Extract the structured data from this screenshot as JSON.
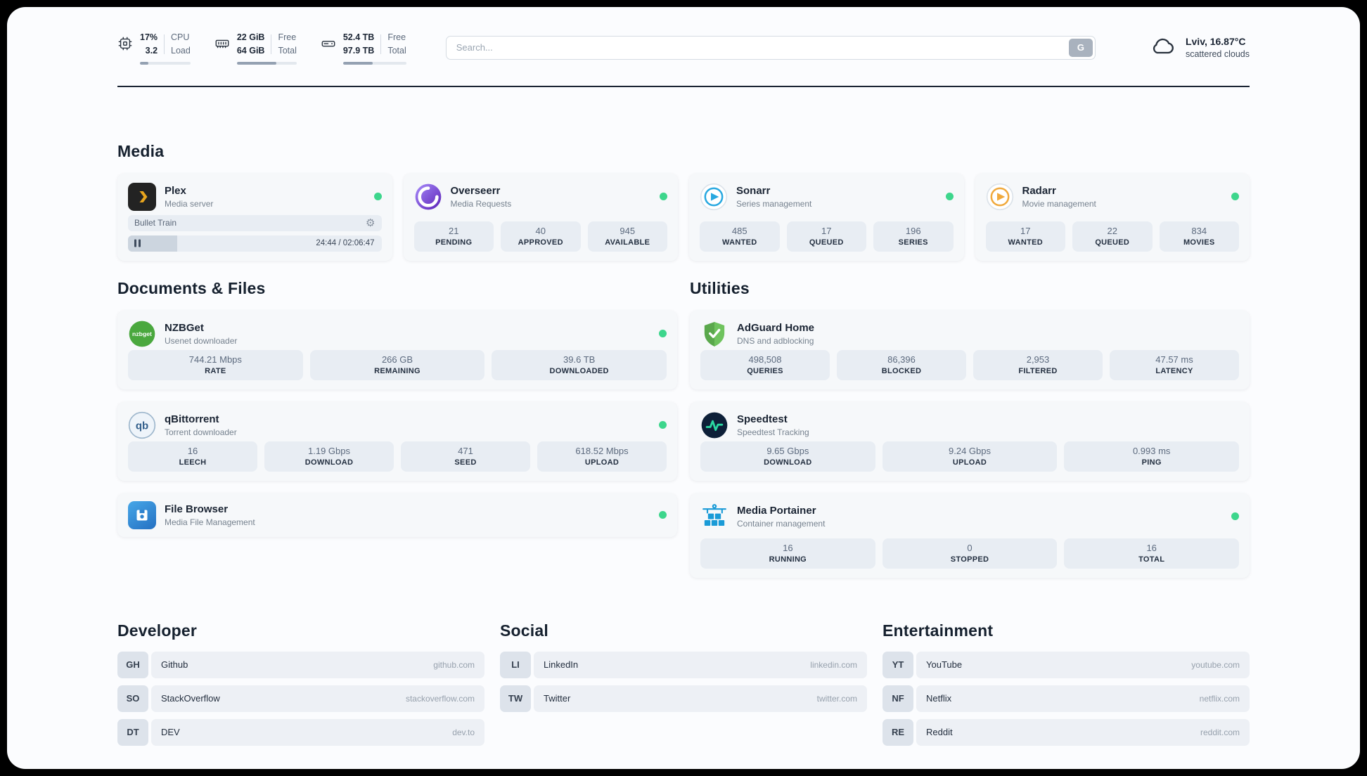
{
  "topbar": {
    "cpu": {
      "values": [
        "17%",
        "3.2"
      ],
      "labels": [
        "CPU",
        "Load"
      ],
      "usage_pct": 17
    },
    "ram": {
      "values": [
        "22 GiB",
        "64 GiB"
      ],
      "labels": [
        "Free",
        "Total"
      ],
      "usage_pct": 66
    },
    "disk": {
      "values": [
        "52.4 TB",
        "97.9 TB"
      ],
      "labels": [
        "Free",
        "Total"
      ],
      "usage_pct": 47
    },
    "search": {
      "placeholder": "Search...",
      "button_label": "G"
    },
    "weather": {
      "location": "Lviv, 16.87°C",
      "condition": "scattered clouds"
    }
  },
  "media": {
    "title": "Media",
    "plex": {
      "name": "Plex",
      "subtitle": "Media server",
      "now_playing": "Bullet Train",
      "time": "24:44 / 02:06:47",
      "progress_pct": 19.5
    },
    "overseerr": {
      "name": "Overseerr",
      "subtitle": "Media Requests",
      "stats": [
        {
          "value": "21",
          "label": "PENDING"
        },
        {
          "value": "40",
          "label": "APPROVED"
        },
        {
          "value": "945",
          "label": "AVAILABLE"
        }
      ]
    },
    "sonarr": {
      "name": "Sonarr",
      "subtitle": "Series management",
      "stats": [
        {
          "value": "485",
          "label": "WANTED"
        },
        {
          "value": "17",
          "label": "QUEUED"
        },
        {
          "value": "196",
          "label": "SERIES"
        }
      ]
    },
    "radarr": {
      "name": "Radarr",
      "subtitle": "Movie management",
      "stats": [
        {
          "value": "17",
          "label": "WANTED"
        },
        {
          "value": "22",
          "label": "QUEUED"
        },
        {
          "value": "834",
          "label": "MOVIES"
        }
      ]
    }
  },
  "documents": {
    "title": "Documents & Files",
    "nzbget": {
      "name": "NZBGet",
      "subtitle": "Usenet downloader",
      "stats": [
        {
          "value": "744.21 Mbps",
          "label": "RATE"
        },
        {
          "value": "266 GB",
          "label": "REMAINING"
        },
        {
          "value": "39.6 TB",
          "label": "DOWNLOADED"
        }
      ]
    },
    "qbittorrent": {
      "name": "qBittorrent",
      "subtitle": "Torrent downloader",
      "stats": [
        {
          "value": "16",
          "label": "LEECH"
        },
        {
          "value": "1.19 Gbps",
          "label": "DOWNLOAD"
        },
        {
          "value": "471",
          "label": "SEED"
        },
        {
          "value": "618.52 Mbps",
          "label": "UPLOAD"
        }
      ]
    },
    "filebrowser": {
      "name": "File Browser",
      "subtitle": "Media File Management"
    }
  },
  "utilities": {
    "title": "Utilities",
    "adguard": {
      "name": "AdGuard Home",
      "subtitle": "DNS and adblocking",
      "stats": [
        {
          "value": "498,508",
          "label": "QUERIES"
        },
        {
          "value": "86,396",
          "label": "BLOCKED"
        },
        {
          "value": "2,953",
          "label": "FILTERED"
        },
        {
          "value": "47.57 ms",
          "label": "LATENCY"
        }
      ]
    },
    "speedtest": {
      "name": "Speedtest",
      "subtitle": "Speedtest Tracking",
      "stats": [
        {
          "value": "9.65 Gbps",
          "label": "DOWNLOAD"
        },
        {
          "value": "9.24 Gbps",
          "label": "UPLOAD"
        },
        {
          "value": "0.993 ms",
          "label": "PING"
        }
      ]
    },
    "portainer": {
      "name": "Media Portainer",
      "subtitle": "Container management",
      "stats": [
        {
          "value": "16",
          "label": "RUNNING"
        },
        {
          "value": "0",
          "label": "STOPPED"
        },
        {
          "value": "16",
          "label": "TOTAL"
        }
      ]
    }
  },
  "links": {
    "developer": {
      "title": "Developer",
      "items": [
        {
          "abbr": "GH",
          "name": "Github",
          "url": "github.com"
        },
        {
          "abbr": "SO",
          "name": "StackOverflow",
          "url": "stackoverflow.com"
        },
        {
          "abbr": "DT",
          "name": "DEV",
          "url": "dev.to"
        }
      ]
    },
    "social": {
      "title": "Social",
      "items": [
        {
          "abbr": "LI",
          "name": "LinkedIn",
          "url": "linkedin.com"
        },
        {
          "abbr": "TW",
          "name": "Twitter",
          "url": "twitter.com"
        }
      ]
    },
    "entertainment": {
      "title": "Entertainment",
      "items": [
        {
          "abbr": "YT",
          "name": "YouTube",
          "url": "youtube.com"
        },
        {
          "abbr": "NF",
          "name": "Netflix",
          "url": "netflix.com"
        },
        {
          "abbr": "RE",
          "name": "Reddit",
          "url": "reddit.com"
        }
      ]
    }
  },
  "colors": {
    "status_online": "#3dd68c",
    "plex_accent": "#e5a00d",
    "divider": "#1a2433"
  }
}
